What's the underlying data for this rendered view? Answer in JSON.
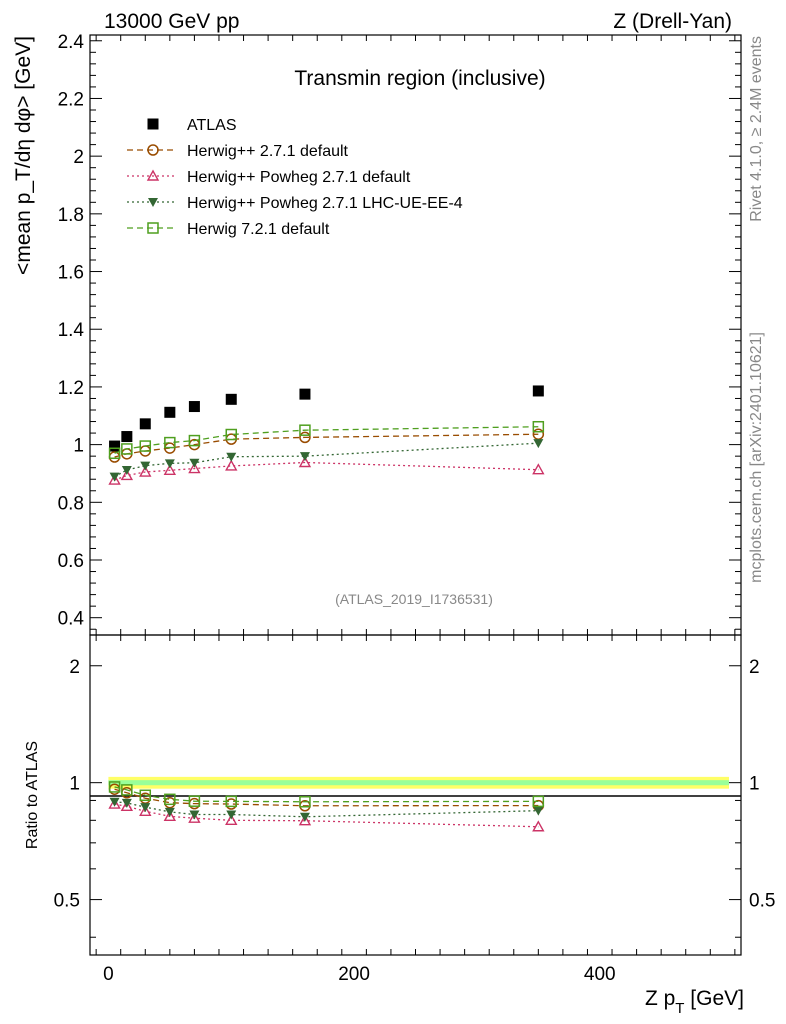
{
  "header": {
    "left": "13000 GeV pp",
    "right": "Z (Drell-Yan)"
  },
  "side_text": {
    "rivet": "Rivet 4.1.0, ≥ 2.4M events",
    "mcplots": "mcplots.cern.ch [arXiv:2401.10621]"
  },
  "watermark": "(ATLAS_2019_I1736531)",
  "colors": {
    "atlas": "#000000",
    "herwig_default": "#994c00",
    "powheg": "#cc3366",
    "powheg_ue": "#336633",
    "herwig7": "#4f9f1f",
    "band_yellow": "#ffff66",
    "band_green": "#99ff99"
  },
  "chart_data": [
    {
      "type": "scatter",
      "title": "Transmin region (inclusive)",
      "ylabel": "<mean p_T/dη dφ> [GeV]",
      "xlabel": "",
      "xlim": [
        -15,
        515
      ],
      "ylim": [
        0.34,
        2.42
      ],
      "yticks": [
        "0.4",
        "0.6",
        "0.8",
        "1",
        "1.2",
        "1.4",
        "1.6",
        "1.8",
        "2",
        "2.2",
        "2.4"
      ],
      "x": [
        5,
        15,
        30,
        50,
        70,
        100,
        160,
        350
      ],
      "series": [
        {
          "name": "ATLAS",
          "marker": "filled-square",
          "line": "none",
          "values": [
            0.995,
            1.028,
            1.072,
            1.112,
            1.132,
            1.157,
            1.175,
            1.186
          ]
        },
        {
          "name": "Herwig++ 2.7.1 default",
          "marker": "open-circle",
          "line": "dashed",
          "values": [
            0.957,
            0.968,
            0.978,
            0.988,
            1.0,
            1.019,
            1.025,
            1.036
          ]
        },
        {
          "name": "Herwig++ Powheg 2.7.1 default",
          "marker": "open-triangle",
          "line": "dotted",
          "values": [
            0.877,
            0.893,
            0.905,
            0.911,
            0.917,
            0.926,
            0.938,
            0.913
          ]
        },
        {
          "name": "Herwig++ Powheg 2.7.1 LHC-UE-EE-4",
          "marker": "filled-triangle-down",
          "line": "dotted",
          "values": [
            0.889,
            0.912,
            0.927,
            0.935,
            0.937,
            0.958,
            0.96,
            1.005
          ]
        },
        {
          "name": "Herwig 7.2.1 default",
          "marker": "open-square",
          "line": "dashed",
          "values": [
            0.97,
            0.985,
            0.995,
            1.007,
            1.014,
            1.035,
            1.05,
            1.062
          ]
        }
      ]
    },
    {
      "type": "line",
      "title": "",
      "ylabel": "Ratio to ATLAS",
      "xlabel": "Z p_T [GeV]",
      "xlim": [
        -15,
        515
      ],
      "ylim": [
        0.36,
        2.4
      ],
      "scale": "log",
      "yticks_left": [
        "0.5",
        "1",
        "2"
      ],
      "yticks_right": [
        "0.5",
        "1",
        "2"
      ],
      "xticks": [
        "0",
        "200",
        "400"
      ],
      "x": [
        5,
        15,
        30,
        50,
        70,
        100,
        160,
        350
      ],
      "series": [
        {
          "name": "Herwig++ 2.7.1 default",
          "values": [
            0.962,
            0.942,
            0.912,
            0.888,
            0.883,
            0.881,
            0.872,
            0.873
          ]
        },
        {
          "name": "Herwig++ Powheg 2.7.1 default",
          "values": [
            0.881,
            0.869,
            0.844,
            0.819,
            0.81,
            0.8,
            0.798,
            0.77
          ]
        },
        {
          "name": "Herwig++ Powheg 2.7.1 LHC-UE-EE-4",
          "values": [
            0.893,
            0.887,
            0.865,
            0.841,
            0.828,
            0.828,
            0.817,
            0.847
          ]
        },
        {
          "name": "Herwig 7.2.1 default",
          "values": [
            0.975,
            0.958,
            0.928,
            0.906,
            0.896,
            0.895,
            0.893,
            0.895
          ]
        }
      ]
    }
  ]
}
